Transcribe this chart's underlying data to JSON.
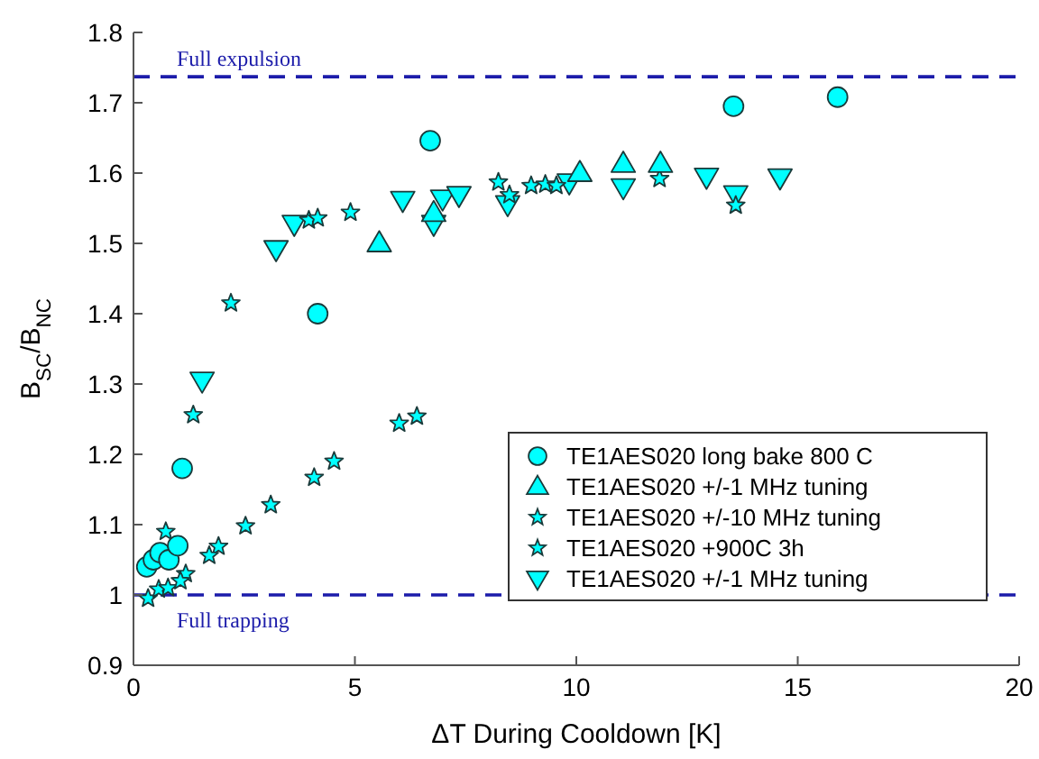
{
  "chart_data": {
    "type": "scatter",
    "xlabel": "ΔT During Cooldown [K]",
    "ylabel": "B$_{SC}$/B$_{NC}$",
    "xlim": [
      0,
      20
    ],
    "xticks": [
      0,
      5,
      10,
      15,
      20
    ],
    "ylim": [
      0.9,
      1.8
    ],
    "yticks": [
      0.9,
      {
        "value": 1,
        "label": "1"
      },
      1.1,
      1.2,
      1.3,
      1.4,
      1.5,
      1.6,
      1.7,
      1.8
    ],
    "grid": false,
    "legend": "bottom right",
    "ref_lines": [
      {
        "axis": "y",
        "value": 1.737,
        "label": "Full expulsion",
        "color": "#1c1caa",
        "line_style": "dashed"
      },
      {
        "axis": "y",
        "value": 1,
        "label": "Full trapping",
        "color": "#1c1caa",
        "line_style": "dashed"
      }
    ],
    "series": [
      {
        "name": "TE1AES020 long bake 800 C",
        "color": "#00ffff",
        "marker": "circle",
        "x": [
          6.7,
          13.55,
          15.9,
          4.16,
          1.1,
          0.3,
          0.45,
          0.6,
          0.8,
          1.0
        ],
        "values": [
          1.646,
          1.695,
          1.708,
          1.4,
          1.18,
          1.04,
          1.05,
          1.06,
          1.05,
          1.07
        ]
      },
      {
        "name": "TE1AES020 +/-1 MHz tuning",
        "color": "#00ffff",
        "marker": "triangle",
        "x": [
          5.55,
          6.78,
          10.08,
          11.06,
          11.9
        ],
        "values": [
          1.5,
          1.543,
          1.6,
          1.613,
          1.613
        ]
      },
      {
        "name": "TE1AES020 +/-10 MHz tuning",
        "color": "#00ffff",
        "marker": "star",
        "x": [
          6.4,
          6.0,
          4.53,
          4.08,
          3.1,
          2.53,
          1.92,
          1.71,
          1.18,
          0.33,
          0.57,
          0.78,
          1.06
        ],
        "values": [
          1.254,
          1.244,
          1.19,
          1.167,
          1.128,
          1.098,
          1.069,
          1.056,
          1.03,
          0.995,
          1.008,
          1.01,
          1.02
        ]
      },
      {
        "name": "TE1AES020 +900C 3h",
        "color": "#00ffff",
        "marker": "star",
        "x": [
          3.96,
          4.16,
          4.9,
          8.24,
          8.49,
          8.98,
          9.3,
          9.55,
          11.88,
          13.6,
          2.2,
          1.35,
          0.73
        ],
        "values": [
          1.533,
          1.536,
          1.544,
          1.587,
          1.569,
          1.582,
          1.584,
          1.582,
          1.592,
          1.554,
          1.415,
          1.256,
          1.09
        ]
      },
      {
        "name": "TE1AES020 +/-1 MHz tuning",
        "color": "#00ffff",
        "marker": "triangle-down",
        "x": [
          3.22,
          3.63,
          6.08,
          6.78,
          6.98,
          7.35,
          8.45,
          9.84,
          11.06,
          12.94,
          13.6,
          14.6,
          1.55
        ],
        "values": [
          1.492,
          1.528,
          1.562,
          1.528,
          1.564,
          1.569,
          1.556,
          1.587,
          1.58,
          1.595,
          1.57,
          1.594,
          1.305
        ]
      }
    ]
  }
}
